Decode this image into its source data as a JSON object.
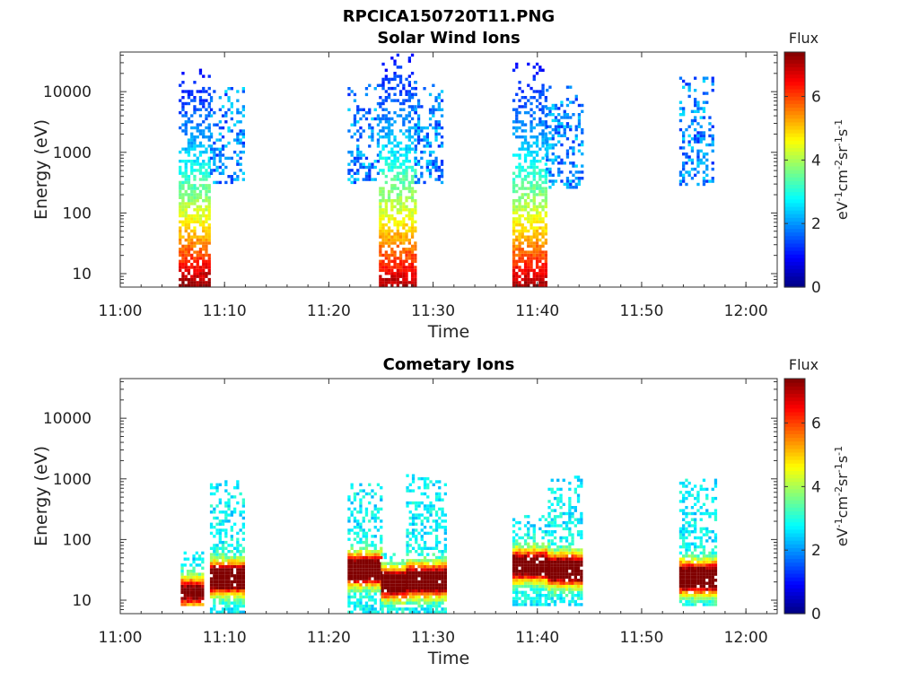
{
  "figure": {
    "title": "RPCICA150720T11.PNG"
  },
  "chart_data": [
    {
      "type": "heatmap",
      "title": "Solar Wind Ions",
      "xlabel": "Time",
      "ylabel": "Energy (eV)",
      "xlim": [
        "11:00",
        "12:03"
      ],
      "ylim": [
        6,
        45000
      ],
      "y_scale": "log",
      "x_ticks": [
        "11:00",
        "11:10",
        "11:20",
        "11:30",
        "11:40",
        "11:50",
        "12:00"
      ],
      "y_ticks": [
        "10",
        "100",
        "1000",
        "10000"
      ],
      "colorbar": {
        "title": "Flux",
        "label": "eV-1cm-2sr-1s-1",
        "range": [
          0,
          7.4
        ],
        "ticks": [
          "0",
          "2",
          "4",
          "6"
        ],
        "colormap": "jet"
      },
      "bursts": [
        {
          "start_min": 5.6,
          "end_min": 8.6,
          "e_min": 6,
          "e_max": 22000,
          "peak_flux": 6.2
        },
        {
          "start_min": 8.6,
          "end_min": 11.8,
          "e_min": 300,
          "e_max": 11000,
          "peak_flux": 2.2
        },
        {
          "start_min": 21.8,
          "end_min": 24.8,
          "e_min": 300,
          "e_max": 12000,
          "peak_flux": 2.0
        },
        {
          "start_min": 24.8,
          "end_min": 28.2,
          "e_min": 6,
          "e_max": 40000,
          "peak_flux": 6.0
        },
        {
          "start_min": 28.2,
          "end_min": 30.8,
          "e_min": 300,
          "e_max": 14000,
          "peak_flux": 2.3
        },
        {
          "start_min": 37.6,
          "end_min": 40.8,
          "e_min": 6,
          "e_max": 30000,
          "peak_flux": 6.0
        },
        {
          "start_min": 40.8,
          "end_min": 44.2,
          "e_min": 250,
          "e_max": 14000,
          "peak_flux": 2.5
        },
        {
          "start_min": 53.6,
          "end_min": 56.8,
          "e_min": 280,
          "e_max": 16000,
          "peak_flux": 2.3
        }
      ]
    },
    {
      "type": "heatmap",
      "title": "Cometary Ions",
      "xlabel": "Time",
      "ylabel": "Energy (eV)",
      "xlim": [
        "11:00",
        "12:03"
      ],
      "ylim": [
        6,
        45000
      ],
      "y_scale": "log",
      "x_ticks": [
        "11:00",
        "11:10",
        "11:20",
        "11:30",
        "11:40",
        "11:50",
        "12:00"
      ],
      "y_ticks": [
        "10",
        "100",
        "1000",
        "10000"
      ],
      "colorbar": {
        "title": "Flux",
        "label": "eV-1cm-2sr-1s-1",
        "range": [
          0,
          7.4
        ],
        "ticks": [
          "0",
          "2",
          "4",
          "6"
        ],
        "colormap": "jet"
      },
      "bursts": [
        {
          "start_min": 5.8,
          "end_min": 8.0,
          "e_min": 8,
          "e_max": 60,
          "peak_flux": 5.2
        },
        {
          "start_min": 8.6,
          "end_min": 11.8,
          "e_min": 6,
          "e_max": 900,
          "peak_flux": 7.2,
          "peak_e": 22
        },
        {
          "start_min": 21.8,
          "end_min": 25.0,
          "e_min": 6,
          "e_max": 800,
          "peak_flux": 7.0,
          "peak_e": 30
        },
        {
          "start_min": 25.0,
          "end_min": 27.4,
          "e_min": 6,
          "e_max": 60,
          "peak_flux": 6.6,
          "peak_e": 18
        },
        {
          "start_min": 27.4,
          "end_min": 31.2,
          "e_min": 6,
          "e_max": 1100,
          "peak_flux": 7.2,
          "peak_e": 20
        },
        {
          "start_min": 37.6,
          "end_min": 41.0,
          "e_min": 8,
          "e_max": 250,
          "peak_flux": 6.5,
          "peak_e": 35
        },
        {
          "start_min": 41.0,
          "end_min": 44.2,
          "e_min": 8,
          "e_max": 1100,
          "peak_flux": 7.0,
          "peak_e": 30
        },
        {
          "start_min": 53.6,
          "end_min": 57.2,
          "e_min": 8,
          "e_max": 1100,
          "peak_flux": 7.2,
          "peak_e": 22
        }
      ]
    }
  ]
}
